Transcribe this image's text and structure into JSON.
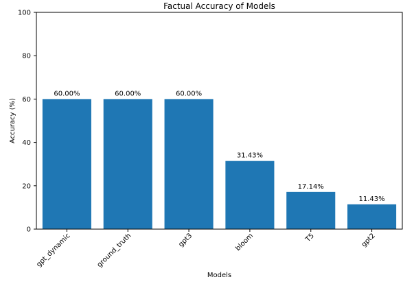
{
  "chart_data": {
    "type": "bar",
    "title": "Factual Accuracy of Models",
    "xlabel": "Models",
    "ylabel": "Accuracy (%)",
    "categories": [
      "gpt_dynamic",
      "ground_truth",
      "gpt3",
      "bloom",
      "T5",
      "gpt2"
    ],
    "values": [
      60.0,
      60.0,
      60.0,
      31.43,
      17.14,
      11.43
    ],
    "value_labels": [
      "60.00%",
      "60.00%",
      "60.00%",
      "31.43%",
      "17.14%",
      "11.43%"
    ],
    "ylim": [
      0,
      100
    ],
    "yticks": [
      0,
      20,
      40,
      60,
      80,
      100
    ],
    "grid": false,
    "bar_color": "#1f77b4"
  }
}
